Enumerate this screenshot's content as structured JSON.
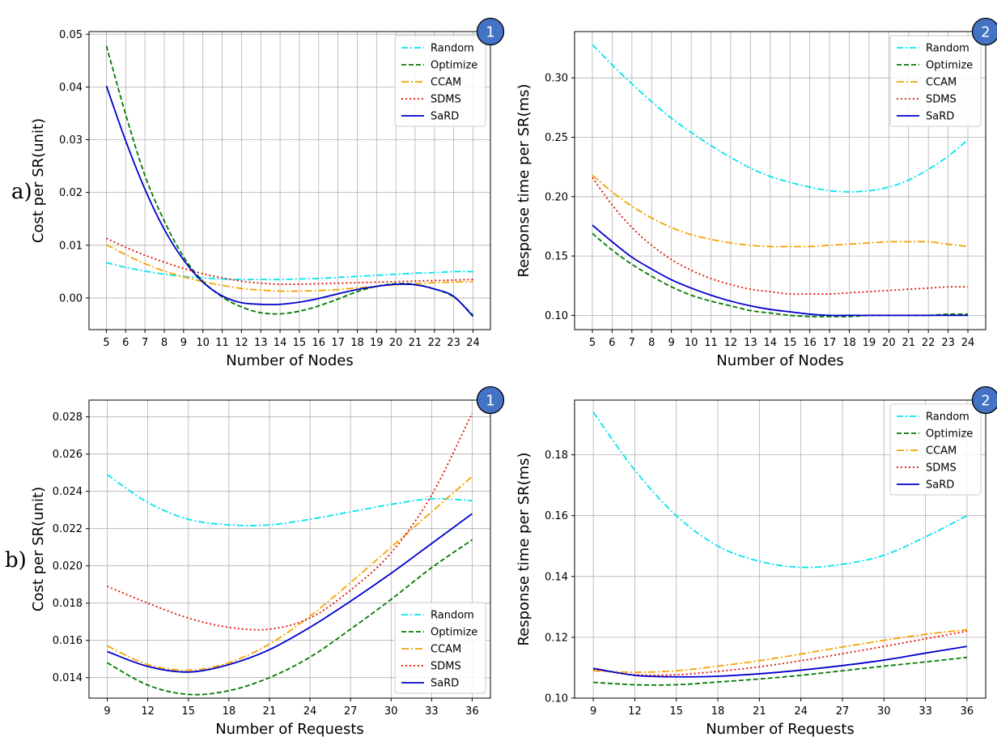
{
  "figure": {
    "row_labels": [
      "a)",
      "b)"
    ]
  },
  "chart_data": [
    {
      "id": "a1",
      "type": "line",
      "badge": "1",
      "xlabel": "Number of Nodes",
      "ylabel": "Cost per SR(unit)",
      "xlim": [
        4.1,
        24.9
      ],
      "ylim": [
        -0.006,
        0.0505
      ],
      "xticks": [
        5,
        6,
        7,
        8,
        9,
        10,
        11,
        12,
        13,
        14,
        15,
        16,
        17,
        18,
        19,
        20,
        21,
        22,
        23,
        24
      ],
      "xtick_labels": [
        "5",
        "6",
        "7",
        "8",
        "9",
        "10",
        "11",
        "12",
        "13",
        "14",
        "15",
        "16",
        "17",
        "18",
        "19",
        "20",
        "21",
        "22",
        "23",
        "24"
      ],
      "yticks": [
        0.0,
        0.01,
        0.02,
        0.03,
        0.04,
        0.05
      ],
      "ytick_labels": [
        "0.00",
        "0.01",
        "0.02",
        "0.03",
        "0.04",
        "0.05"
      ],
      "grid": true,
      "legend_position": "top-right",
      "x": [
        5,
        6,
        7,
        8,
        9,
        10,
        11,
        12,
        13,
        14,
        15,
        16,
        17,
        18,
        19,
        20,
        21,
        22,
        23,
        24
      ],
      "series": [
        {
          "name": "Random",
          "color": "#00e5ee",
          "dash": "8,3,2,3",
          "values": [
            0.0067,
            0.0058,
            0.0051,
            0.0045,
            0.0041,
            0.0038,
            0.0036,
            0.0035,
            0.0035,
            0.0035,
            0.0036,
            0.0037,
            0.0039,
            0.0041,
            0.0043,
            0.0045,
            0.0047,
            0.0048,
            0.005,
            0.005
          ]
        },
        {
          "name": "Optimize",
          "color": "#007a00",
          "dash": "6,3",
          "values": [
            0.0478,
            0.0348,
            0.0232,
            0.0146,
            0.0078,
            0.0032,
            0.0002,
            -0.0017,
            -0.0028,
            -0.003,
            -0.0025,
            -0.0015,
            -0.0002,
            0.0012,
            0.0022,
            0.0027,
            0.0026,
            0.0017,
            0.0002,
            -0.0033
          ]
        },
        {
          "name": "CCAM",
          "color": "#f5a300",
          "dash": "9,3,2,3",
          "values": [
            0.0101,
            0.0082,
            0.0065,
            0.0051,
            0.004,
            0.0031,
            0.0024,
            0.0018,
            0.0015,
            0.0013,
            0.0013,
            0.0014,
            0.0016,
            0.0019,
            0.0022,
            0.0025,
            0.0027,
            0.0029,
            0.003,
            0.0031
          ]
        },
        {
          "name": "SDMS",
          "color": "#dd1100",
          "dash": "2,3",
          "values": [
            0.0113,
            0.0096,
            0.0081,
            0.0068,
            0.0056,
            0.0046,
            0.0038,
            0.0032,
            0.0028,
            0.0026,
            0.0026,
            0.0027,
            0.0028,
            0.0029,
            0.003,
            0.0031,
            0.0032,
            0.0033,
            0.0034,
            0.0035
          ]
        },
        {
          "name": "SaRD",
          "color": "#0000cc",
          "dash": "",
          "values": [
            0.0402,
            0.0298,
            0.0206,
            0.013,
            0.0072,
            0.003,
            0.0004,
            -0.0009,
            -0.0012,
            -0.0012,
            -0.0008,
            -0.0001,
            0.0008,
            0.0016,
            0.0022,
            0.0026,
            0.0025,
            0.0017,
            0.0003,
            -0.0035
          ]
        }
      ]
    },
    {
      "id": "a2",
      "type": "line",
      "badge": "2",
      "xlabel": "Number of Nodes",
      "ylabel": "Response time per SR(ms)",
      "xlim": [
        4.1,
        24.9
      ],
      "ylim": [
        0.088,
        0.339
      ],
      "xticks": [
        5,
        6,
        7,
        8,
        9,
        10,
        11,
        12,
        13,
        14,
        15,
        16,
        17,
        18,
        19,
        20,
        21,
        22,
        23,
        24
      ],
      "xtick_labels": [
        "5",
        "6",
        "7",
        "8",
        "9",
        "10",
        "11",
        "12",
        "13",
        "14",
        "15",
        "16",
        "17",
        "18",
        "19",
        "20",
        "21",
        "22",
        "23",
        "24"
      ],
      "yticks": [
        0.1,
        0.15,
        0.2,
        0.25,
        0.3
      ],
      "ytick_labels": [
        "0.10",
        "0.15",
        "0.20",
        "0.25",
        "0.30"
      ],
      "grid": true,
      "legend_position": "top-right",
      "x": [
        5,
        6,
        7,
        8,
        9,
        10,
        11,
        12,
        13,
        14,
        15,
        16,
        17,
        18,
        19,
        20,
        21,
        22,
        23,
        24
      ],
      "series": [
        {
          "name": "Random",
          "color": "#00e5ee",
          "dash": "8,3,2,3",
          "values": [
            0.328,
            0.311,
            0.295,
            0.28,
            0.266,
            0.254,
            0.243,
            0.233,
            0.224,
            0.217,
            0.212,
            0.208,
            0.205,
            0.204,
            0.205,
            0.208,
            0.214,
            0.223,
            0.234,
            0.248
          ]
        },
        {
          "name": "Optimize",
          "color": "#007a00",
          "dash": "6,3",
          "values": [
            0.169,
            0.155,
            0.143,
            0.133,
            0.124,
            0.117,
            0.112,
            0.108,
            0.104,
            0.102,
            0.1,
            0.099,
            0.099,
            0.099,
            0.1,
            0.1,
            0.1,
            0.1,
            0.101,
            0.101
          ]
        },
        {
          "name": "CCAM",
          "color": "#f5a300",
          "dash": "9,3,2,3",
          "values": [
            0.218,
            0.204,
            0.192,
            0.182,
            0.174,
            0.168,
            0.164,
            0.161,
            0.159,
            0.158,
            0.158,
            0.158,
            0.159,
            0.16,
            0.161,
            0.162,
            0.162,
            0.162,
            0.16,
            0.158
          ]
        },
        {
          "name": "SDMS",
          "color": "#dd1100",
          "dash": "2,3",
          "values": [
            0.216,
            0.193,
            0.174,
            0.159,
            0.147,
            0.138,
            0.131,
            0.126,
            0.122,
            0.12,
            0.118,
            0.118,
            0.118,
            0.119,
            0.12,
            0.121,
            0.122,
            0.123,
            0.124,
            0.124
          ]
        },
        {
          "name": "SaRD",
          "color": "#0000cc",
          "dash": "",
          "values": [
            0.176,
            0.162,
            0.149,
            0.139,
            0.13,
            0.123,
            0.117,
            0.112,
            0.108,
            0.105,
            0.103,
            0.101,
            0.1,
            0.1,
            0.1,
            0.1,
            0.1,
            0.1,
            0.1,
            0.1
          ]
        }
      ]
    },
    {
      "id": "b1",
      "type": "line",
      "badge": "1",
      "xlabel": "Number of Requests",
      "ylabel": "Cost per SR(unit)",
      "xlim": [
        7.65,
        37.35
      ],
      "ylim": [
        0.0129,
        0.0289
      ],
      "xticks": [
        9,
        12,
        15,
        18,
        21,
        24,
        27,
        30,
        33,
        36
      ],
      "xtick_labels": [
        "9",
        "12",
        "15",
        "18",
        "21",
        "24",
        "27",
        "30",
        "33",
        "36"
      ],
      "yticks": [
        0.014,
        0.016,
        0.018,
        0.02,
        0.022,
        0.024,
        0.026,
        0.028
      ],
      "ytick_labels": [
        "0.014",
        "0.016",
        "0.018",
        "0.020",
        "0.022",
        "0.024",
        "0.026",
        "0.028"
      ],
      "grid": true,
      "legend_position": "bottom-right",
      "x": [
        9,
        12,
        15,
        18,
        21,
        24,
        27,
        30,
        33,
        36
      ],
      "series": [
        {
          "name": "Random",
          "color": "#00e5ee",
          "dash": "8,3,2,3",
          "values": [
            0.0249,
            0.0234,
            0.0225,
            0.0222,
            0.0222,
            0.0225,
            0.0229,
            0.0233,
            0.0236,
            0.0235
          ]
        },
        {
          "name": "Optimize",
          "color": "#007a00",
          "dash": "6,3",
          "values": [
            0.0148,
            0.0136,
            0.0131,
            0.0133,
            0.014,
            0.0151,
            0.0166,
            0.0182,
            0.0199,
            0.0214
          ]
        },
        {
          "name": "CCAM",
          "color": "#f5a300",
          "dash": "9,3,2,3",
          "values": [
            0.0157,
            0.0147,
            0.0144,
            0.0148,
            0.0158,
            0.0173,
            0.0191,
            0.021,
            0.0229,
            0.0248
          ]
        },
        {
          "name": "SDMS",
          "color": "#dd1100",
          "dash": "2,3",
          "values": [
            0.0189,
            0.018,
            0.0172,
            0.0167,
            0.0166,
            0.0172,
            0.0187,
            0.0207,
            0.0238,
            0.0282
          ]
        },
        {
          "name": "SaRD",
          "color": "#0000cc",
          "dash": "",
          "values": [
            0.0154,
            0.0146,
            0.0143,
            0.0147,
            0.0155,
            0.0167,
            0.0181,
            0.0196,
            0.0212,
            0.0228
          ]
        }
      ]
    },
    {
      "id": "b2",
      "type": "line",
      "badge": "2",
      "xlabel": "Number of Requests",
      "ylabel": "Response time per SR(ms)",
      "xlim": [
        7.65,
        37.35
      ],
      "ylim": [
        0.1,
        0.198
      ],
      "xticks": [
        9,
        12,
        15,
        18,
        21,
        24,
        27,
        30,
        33,
        36
      ],
      "xtick_labels": [
        "9",
        "12",
        "15",
        "18",
        "21",
        "24",
        "27",
        "30",
        "33",
        "36"
      ],
      "yticks": [
        0.1,
        0.12,
        0.14,
        0.16,
        0.18
      ],
      "ytick_labels": [
        "0.10",
        "0.12",
        "0.14",
        "0.16",
        "0.18"
      ],
      "grid": true,
      "legend_position": "top-right",
      "x": [
        9,
        12,
        15,
        18,
        21,
        24,
        27,
        30,
        33,
        36
      ],
      "series": [
        {
          "name": "Random",
          "color": "#00e5ee",
          "dash": "8,3,2,3",
          "values": [
            0.194,
            0.175,
            0.16,
            0.15,
            0.145,
            0.143,
            0.144,
            0.147,
            0.153,
            0.16
          ]
        },
        {
          "name": "Optimize",
          "color": "#007a00",
          "dash": "6,3",
          "values": [
            0.1052,
            0.1044,
            0.1044,
            0.1053,
            0.1063,
            0.1075,
            0.109,
            0.1105,
            0.1119,
            0.1134
          ]
        },
        {
          "name": "CCAM",
          "color": "#f5a300",
          "dash": "9,3,2,3",
          "values": [
            0.109,
            0.1085,
            0.109,
            0.1105,
            0.1123,
            0.1145,
            0.1168,
            0.119,
            0.121,
            0.1225
          ]
        },
        {
          "name": "SDMS",
          "color": "#dd1100",
          "dash": "2,3",
          "values": [
            0.1095,
            0.1077,
            0.1077,
            0.1088,
            0.1103,
            0.1123,
            0.1146,
            0.117,
            0.1195,
            0.122
          ]
        },
        {
          "name": "SaRD",
          "color": "#0000cc",
          "dash": "",
          "values": [
            0.1098,
            0.1075,
            0.107,
            0.1072,
            0.108,
            0.1092,
            0.1107,
            0.1125,
            0.1148,
            0.117
          ]
        }
      ]
    }
  ]
}
